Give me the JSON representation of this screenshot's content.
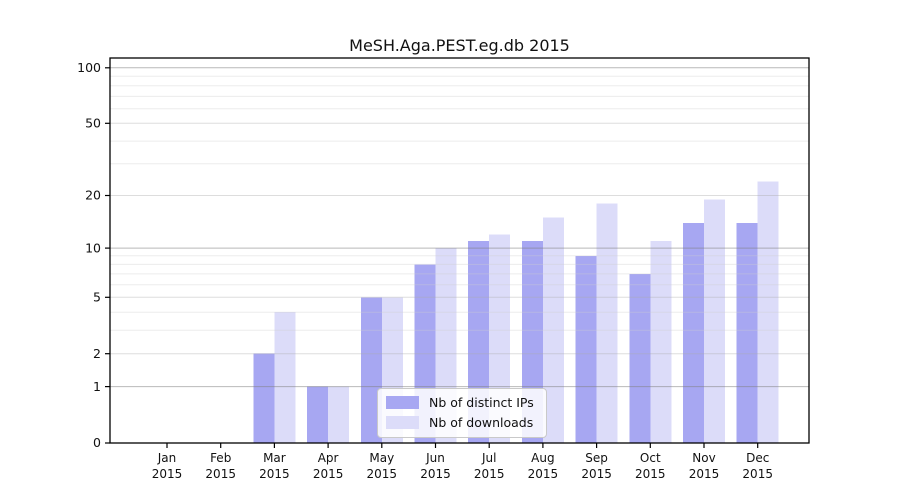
{
  "chart_data": {
    "type": "bar",
    "title": "MeSH.Aga.PEST.eg.db 2015",
    "categories": [
      "Jan",
      "Feb",
      "Mar",
      "Apr",
      "May",
      "Jun",
      "Jul",
      "Aug",
      "Sep",
      "Oct",
      "Nov",
      "Dec"
    ],
    "year_label": "2015",
    "series": [
      {
        "name": "Nb of distinct IPs",
        "color": "#a7a7f2",
        "values": [
          0,
          0,
          2,
          1,
          5,
          8,
          11,
          11,
          9,
          7,
          14,
          14
        ]
      },
      {
        "name": "Nb of downloads",
        "color": "#dcdcf9",
        "values": [
          0,
          0,
          4,
          1,
          5,
          10,
          12,
          15,
          18,
          11,
          19,
          24
        ]
      }
    ],
    "yscale": "log1p",
    "yticks": [
      0,
      1,
      2,
      5,
      10,
      20,
      50,
      100
    ],
    "major_gridlines": [
      1,
      10,
      100
    ],
    "mid_gridlines": [
      2,
      5,
      20,
      50
    ],
    "minor_gridlines": [
      3,
      4,
      6,
      7,
      8,
      9,
      30,
      40,
      60,
      70,
      80,
      90
    ],
    "ylim": [
      0,
      110
    ],
    "grid": true,
    "legend_position": "lower-center"
  }
}
